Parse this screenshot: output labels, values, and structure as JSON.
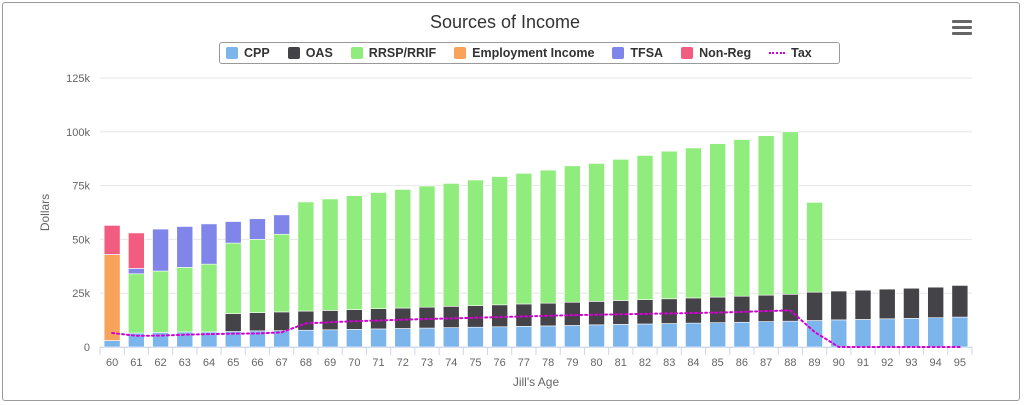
{
  "chart_data": {
    "type": "bar",
    "stacked": true,
    "title": "Sources of Income",
    "xlabel": "Jill's Age",
    "ylabel": "Dollars",
    "ylim": [
      0,
      125000
    ],
    "yticks": [
      0,
      25000,
      50000,
      75000,
      100000,
      125000
    ],
    "ytick_labels": [
      "0",
      "25k",
      "50k",
      "75k",
      "100k",
      "125k"
    ],
    "categories": [
      "60",
      "61",
      "62",
      "63",
      "64",
      "65",
      "66",
      "67",
      "68",
      "69",
      "70",
      "71",
      "72",
      "73",
      "74",
      "75",
      "76",
      "77",
      "78",
      "79",
      "80",
      "81",
      "82",
      "83",
      "84",
      "85",
      "86",
      "87",
      "88",
      "89",
      "90",
      "91",
      "92",
      "93",
      "94",
      "95"
    ],
    "series": [
      {
        "name": "CPP",
        "color": "#7cb5ec",
        "values": [
          3000,
          6500,
          6800,
          7000,
          7000,
          7200,
          7500,
          7600,
          7800,
          8000,
          8200,
          8400,
          8600,
          8800,
          9000,
          9200,
          9400,
          9600,
          9800,
          10000,
          10300,
          10500,
          10700,
          10900,
          11100,
          11300,
          11500,
          11800,
          12000,
          12300,
          12600,
          12800,
          13100,
          13300,
          13600,
          13900
        ]
      },
      {
        "name": "OAS",
        "color": "#434348",
        "values": [
          0,
          0,
          0,
          0,
          0,
          8300,
          8500,
          8700,
          8900,
          9000,
          9200,
          9400,
          9500,
          9700,
          9900,
          10000,
          10200,
          10400,
          10600,
          10800,
          10900,
          11100,
          11300,
          11500,
          11700,
          11900,
          12100,
          12300,
          12500,
          13200,
          13400,
          13600,
          13800,
          14000,
          14200,
          14700
        ]
      },
      {
        "name": "RRSP/RRIF",
        "color": "#90ed7d",
        "values": [
          0,
          27500,
          28500,
          30000,
          31500,
          32800,
          34000,
          36100,
          50700,
          51800,
          52900,
          54000,
          55100,
          56300,
          57100,
          58400,
          59600,
          60700,
          61800,
          63400,
          64100,
          65600,
          67000,
          68600,
          69700,
          71300,
          72800,
          74100,
          75500,
          41700,
          0,
          0,
          0,
          0,
          0,
          0
        ]
      },
      {
        "name": "Employment Income",
        "color": "#f7a35c",
        "values": [
          40000,
          0,
          0,
          0,
          0,
          0,
          0,
          0,
          0,
          0,
          0,
          0,
          0,
          0,
          0,
          0,
          0,
          0,
          0,
          0,
          0,
          0,
          0,
          0,
          0,
          0,
          0,
          0,
          0,
          0,
          0,
          0,
          0,
          0,
          0,
          0
        ]
      },
      {
        "name": "TFSA",
        "color": "#8085e9",
        "values": [
          0,
          2500,
          19500,
          19000,
          18700,
          10000,
          9600,
          9000,
          0,
          0,
          0,
          0,
          0,
          0,
          0,
          0,
          0,
          0,
          0,
          0,
          0,
          0,
          0,
          0,
          0,
          0,
          0,
          0,
          0,
          0,
          0,
          0,
          0,
          0,
          0,
          0
        ]
      },
      {
        "name": "Non-Reg",
        "color": "#f15c80",
        "values": [
          13500,
          16500,
          0,
          0,
          0,
          0,
          0,
          0,
          0,
          0,
          0,
          0,
          0,
          0,
          0,
          0,
          0,
          0,
          0,
          0,
          0,
          0,
          0,
          0,
          0,
          0,
          0,
          0,
          0,
          0,
          0,
          0,
          0,
          0,
          0,
          0
        ]
      }
    ],
    "line_series": {
      "name": "Tax",
      "color": "#d400d4",
      "values": [
        6500,
        5200,
        5300,
        5700,
        6000,
        6200,
        6300,
        6800,
        11000,
        11500,
        12000,
        12300,
        12700,
        13000,
        13300,
        13600,
        13900,
        14200,
        14500,
        14800,
        15000,
        15200,
        15400,
        15600,
        15800,
        16000,
        16300,
        16700,
        17000,
        7000,
        0,
        0,
        0,
        0,
        0,
        0
      ]
    },
    "legend": [
      "CPP",
      "OAS",
      "RRSP/RRIF",
      "Employment Income",
      "TFSA",
      "Non-Reg",
      "Tax"
    ]
  }
}
